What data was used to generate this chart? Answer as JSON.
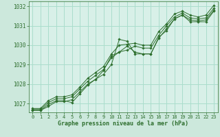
{
  "bg_color": "#cce8dc",
  "plot_bg_color": "#d8f0e8",
  "grid_color": "#aaddcc",
  "line_color": "#2d6e2d",
  "marker_color": "#2d6e2d",
  "xlabel": "Graphe pression niveau de la mer (hPa)",
  "xlabel_color": "#2d6e2d",
  "xlim": [
    -0.5,
    23.5
  ],
  "ylim": [
    1026.55,
    1032.25
  ],
  "yticks": [
    1027,
    1028,
    1029,
    1030,
    1031,
    1032
  ],
  "xticks": [
    0,
    1,
    2,
    3,
    4,
    5,
    6,
    7,
    8,
    9,
    10,
    11,
    12,
    13,
    14,
    15,
    16,
    17,
    18,
    19,
    20,
    21,
    22,
    23
  ],
  "series": [
    [
      1026.65,
      1026.65,
      1026.85,
      1027.1,
      1027.1,
      1027.2,
      1027.6,
      1028.0,
      1028.25,
      1028.5,
      1029.0,
      1030.3,
      1030.2,
      1029.55,
      1029.55,
      1029.55,
      1030.4,
      1030.75,
      1031.35,
      1031.55,
      1031.2,
      1031.2,
      1031.2,
      1031.75
    ],
    [
      1026.65,
      1026.65,
      1026.95,
      1027.15,
      1027.15,
      1027.05,
      1027.5,
      1027.95,
      1028.25,
      1028.7,
      1029.45,
      1029.65,
      1029.95,
      1029.65,
      1029.55,
      1029.55,
      1030.35,
      1030.85,
      1031.35,
      1031.55,
      1031.3,
      1031.25,
      1031.3,
      1031.8
    ],
    [
      1026.7,
      1026.7,
      1027.05,
      1027.25,
      1027.25,
      1027.35,
      1027.75,
      1028.15,
      1028.45,
      1028.75,
      1029.35,
      1029.65,
      1029.75,
      1029.95,
      1029.85,
      1029.85,
      1030.5,
      1031.0,
      1031.45,
      1031.65,
      1031.4,
      1031.35,
      1031.4,
      1031.9
    ],
    [
      1026.75,
      1026.75,
      1027.15,
      1027.35,
      1027.35,
      1027.45,
      1027.85,
      1028.3,
      1028.6,
      1028.9,
      1029.55,
      1030.0,
      1030.05,
      1030.1,
      1030.0,
      1030.0,
      1030.7,
      1031.1,
      1031.6,
      1031.75,
      1031.55,
      1031.45,
      1031.55,
      1032.05
    ]
  ]
}
